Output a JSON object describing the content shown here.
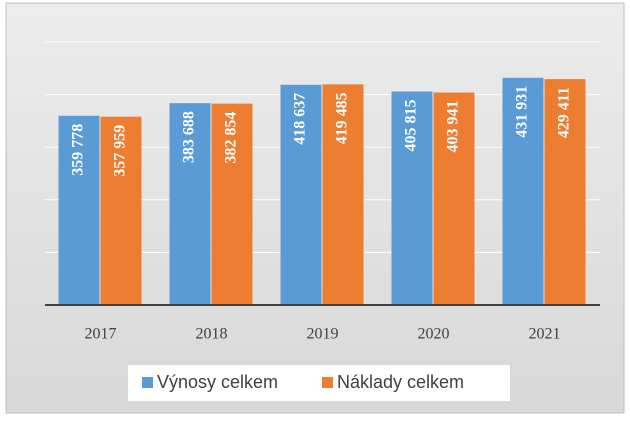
{
  "chart_data": {
    "type": "bar",
    "categories": [
      "2017",
      "2018",
      "2019",
      "2020",
      "2021"
    ],
    "series": [
      {
        "name": "Výnosy celkem",
        "color": "#5b9bd5",
        "values": [
          359778,
          383688,
          418637,
          405815,
          431931
        ],
        "value_labels": [
          "359 778",
          "383 688",
          "418 637",
          "405 815",
          "431 931"
        ]
      },
      {
        "name": "Náklady celkem",
        "color": "#ed7d31",
        "values": [
          357959,
          382854,
          419485,
          403941,
          429411
        ],
        "value_labels": [
          "357 959",
          "382 854",
          "419 485",
          "403 941",
          "429 411"
        ]
      }
    ],
    "ylim": [
      0,
      500000
    ],
    "yticks": [
      0,
      100000,
      200000,
      300000,
      400000,
      500000
    ],
    "grid": true,
    "legend": "bottom"
  }
}
